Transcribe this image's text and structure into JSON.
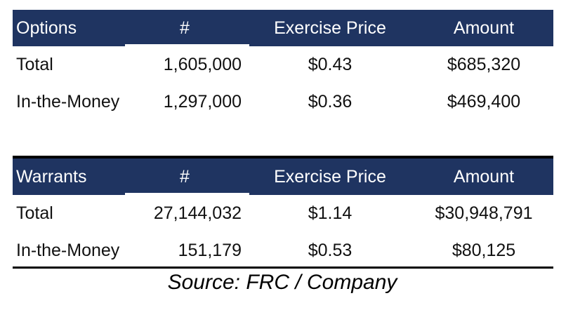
{
  "colors": {
    "header_bg": "#1f3461",
    "header_text": "#ffffff",
    "rule": "#000000"
  },
  "options_table": {
    "headers": [
      "Options",
      "#",
      "Exercise Price",
      "Amount"
    ],
    "rows": [
      [
        "Total",
        "1,605,000",
        "$0.43",
        "$685,320"
      ],
      [
        "In-the-Money",
        "1,297,000",
        "$0.36",
        "$469,400"
      ]
    ]
  },
  "warrants_table": {
    "headers": [
      "Warrants",
      "#",
      "Exercise Price",
      "Amount"
    ],
    "rows": [
      [
        "Total",
        "27,144,032",
        "$1.14",
        "$30,948,791"
      ],
      [
        "In-the-Money",
        "151,179",
        "$0.53",
        "$80,125"
      ]
    ]
  },
  "source": "Source: FRC / Company"
}
